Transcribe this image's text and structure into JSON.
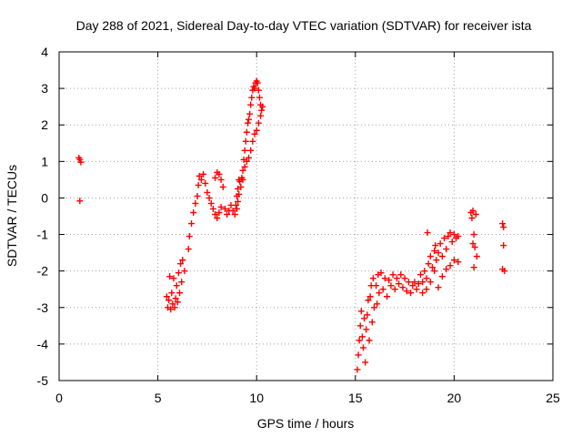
{
  "chart_data": {
    "type": "scatter",
    "title": "Day 288 of 2021, Sidereal Day-to-day VTEC variation (SDTVAR) for receiver ista",
    "xlabel": "GPS time / hours",
    "ylabel": "SDTVAR / TECUs",
    "xlim": [
      0,
      25
    ],
    "ylim": [
      -5,
      4
    ],
    "xticks": [
      0,
      5,
      10,
      15,
      20,
      25
    ],
    "yticks": [
      -5,
      -4,
      -3,
      -2,
      -1,
      0,
      1,
      2,
      3,
      4
    ],
    "grid": true,
    "marker": "+",
    "series": [
      {
        "name": "SDTVAR",
        "color": "#ff0000",
        "points": [
          [
            1.0,
            1.1
          ],
          [
            1.05,
            1.05
          ],
          [
            1.1,
            0.98
          ],
          [
            1.05,
            -0.08
          ],
          [
            5.45,
            -2.7
          ],
          [
            5.5,
            -3.0
          ],
          [
            5.55,
            -2.8
          ],
          [
            5.6,
            -2.15
          ],
          [
            5.65,
            -3.05
          ],
          [
            5.7,
            -2.6
          ],
          [
            5.75,
            -2.9
          ],
          [
            5.8,
            -2.2
          ],
          [
            5.85,
            -3.0
          ],
          [
            5.9,
            -2.75
          ],
          [
            5.95,
            -2.4
          ],
          [
            6.0,
            -2.85
          ],
          [
            6.05,
            -2.05
          ],
          [
            6.1,
            -2.6
          ],
          [
            6.15,
            -1.8
          ],
          [
            6.2,
            -2.3
          ],
          [
            6.25,
            -1.7
          ],
          [
            6.35,
            -2.0
          ],
          [
            6.55,
            -1.4
          ],
          [
            6.6,
            -1.05
          ],
          [
            6.7,
            -0.7
          ],
          [
            6.8,
            -0.4
          ],
          [
            6.9,
            -0.15
          ],
          [
            7.0,
            0.05
          ],
          [
            7.05,
            0.35
          ],
          [
            7.1,
            0.6
          ],
          [
            7.2,
            0.5
          ],
          [
            7.3,
            0.65
          ],
          [
            7.4,
            0.4
          ],
          [
            7.5,
            0.15
          ],
          [
            7.6,
            0.0
          ],
          [
            7.7,
            -0.15
          ],
          [
            7.8,
            -0.3
          ],
          [
            7.9,
            -0.45
          ],
          [
            8.0,
            -0.55
          ],
          [
            8.1,
            -0.4
          ],
          [
            8.2,
            -0.25
          ],
          [
            7.9,
            0.55
          ],
          [
            8.0,
            0.7
          ],
          [
            8.1,
            0.65
          ],
          [
            8.2,
            0.5
          ],
          [
            8.3,
            0.3
          ],
          [
            8.4,
            -0.3
          ],
          [
            8.5,
            -0.45
          ],
          [
            8.6,
            -0.35
          ],
          [
            8.7,
            -0.2
          ],
          [
            8.8,
            -0.35
          ],
          [
            8.9,
            -0.45
          ],
          [
            9.0,
            -0.3
          ],
          [
            9.05,
            -0.1
          ],
          [
            9.1,
            0.1
          ],
          [
            9.2,
            0.3
          ],
          [
            9.25,
            0.55
          ],
          [
            9.3,
            0.75
          ],
          [
            9.35,
            1.05
          ],
          [
            9.4,
            1.3
          ],
          [
            9.45,
            1.55
          ],
          [
            9.5,
            1.8
          ],
          [
            9.55,
            2.05
          ],
          [
            9.6,
            2.15
          ],
          [
            9.65,
            2.3
          ],
          [
            9.7,
            2.55
          ],
          [
            9.75,
            2.75
          ],
          [
            9.8,
            2.95
          ],
          [
            9.85,
            3.05
          ],
          [
            9.9,
            3.0
          ],
          [
            9.95,
            3.15
          ],
          [
            10.0,
            3.2
          ],
          [
            10.05,
            3.15
          ],
          [
            10.1,
            2.95
          ],
          [
            10.15,
            2.75
          ],
          [
            10.2,
            2.55
          ],
          [
            10.25,
            2.4
          ],
          [
            10.3,
            2.5
          ],
          [
            8.95,
            -0.2
          ],
          [
            9.0,
            0.05
          ],
          [
            9.05,
            0.25
          ],
          [
            9.1,
            0.5
          ],
          [
            9.15,
            0.45
          ],
          [
            9.3,
            0.5
          ],
          [
            9.4,
            0.85
          ],
          [
            9.5,
            1.0
          ],
          [
            9.6,
            1.1
          ],
          [
            9.7,
            1.3
          ],
          [
            9.8,
            1.55
          ],
          [
            9.9,
            1.75
          ],
          [
            10.0,
            1.85
          ],
          [
            10.1,
            2.05
          ],
          [
            10.2,
            2.25
          ],
          [
            15.1,
            -4.7
          ],
          [
            15.15,
            -4.3
          ],
          [
            15.2,
            -3.9
          ],
          [
            15.25,
            -3.5
          ],
          [
            15.3,
            -3.1
          ],
          [
            15.35,
            -3.8
          ],
          [
            15.4,
            -4.1
          ],
          [
            15.45,
            -3.3
          ],
          [
            15.5,
            -4.5
          ],
          [
            15.55,
            -3.6
          ],
          [
            15.6,
            -3.2
          ],
          [
            15.65,
            -2.8
          ],
          [
            15.7,
            -3.9
          ],
          [
            15.75,
            -2.7
          ],
          [
            15.8,
            -2.4
          ],
          [
            15.85,
            -3.4
          ],
          [
            15.9,
            -2.2
          ],
          [
            15.95,
            -3.0
          ],
          [
            16.05,
            -2.4
          ],
          [
            16.1,
            -2.9
          ],
          [
            16.15,
            -2.1
          ],
          [
            16.2,
            -2.6
          ],
          [
            16.3,
            -2.05
          ],
          [
            16.4,
            -2.5
          ],
          [
            16.5,
            -2.2
          ],
          [
            16.6,
            -2.7
          ],
          [
            16.7,
            -2.25
          ],
          [
            16.8,
            -2.4
          ],
          [
            16.9,
            -2.1
          ],
          [
            17.0,
            -2.5
          ],
          [
            17.1,
            -2.2
          ],
          [
            17.2,
            -2.35
          ],
          [
            17.3,
            -2.1
          ],
          [
            17.4,
            -2.45
          ],
          [
            17.5,
            -2.2
          ],
          [
            17.6,
            -2.55
          ],
          [
            17.7,
            -2.3
          ],
          [
            17.8,
            -2.6
          ],
          [
            17.9,
            -2.4
          ],
          [
            18.0,
            -2.3
          ],
          [
            18.1,
            -2.5
          ],
          [
            18.2,
            -2.35
          ],
          [
            18.3,
            -2.1
          ],
          [
            18.4,
            -2.3
          ],
          [
            18.5,
            -2.0
          ],
          [
            18.6,
            -2.2
          ],
          [
            18.65,
            -0.95
          ],
          [
            18.7,
            -1.8
          ],
          [
            18.8,
            -1.6
          ],
          [
            18.9,
            -1.9
          ],
          [
            19.0,
            -1.45
          ],
          [
            19.05,
            -1.3
          ],
          [
            19.1,
            -1.7
          ],
          [
            19.2,
            -1.5
          ],
          [
            19.3,
            -1.25
          ],
          [
            19.4,
            -1.6
          ],
          [
            19.5,
            -1.1
          ],
          [
            19.6,
            -1.4
          ],
          [
            19.7,
            -1.05
          ],
          [
            19.8,
            -0.95
          ],
          [
            19.9,
            -1.2
          ],
          [
            20.0,
            -1.0
          ],
          [
            20.1,
            -1.1
          ],
          [
            20.2,
            -1.05
          ],
          [
            18.4,
            -2.6
          ],
          [
            18.6,
            -2.5
          ],
          [
            18.8,
            -2.3
          ],
          [
            19.0,
            -2.0
          ],
          [
            19.2,
            -2.45
          ],
          [
            19.4,
            -2.15
          ],
          [
            19.6,
            -1.95
          ],
          [
            19.8,
            -1.85
          ],
          [
            20.0,
            -1.7
          ],
          [
            20.2,
            -1.75
          ],
          [
            20.85,
            -0.4
          ],
          [
            20.9,
            -0.55
          ],
          [
            20.95,
            -0.35
          ],
          [
            21.0,
            -1.0
          ],
          [
            21.05,
            -1.35
          ],
          [
            21.1,
            -0.45
          ],
          [
            21.15,
            -1.6
          ],
          [
            21.0,
            -1.9
          ],
          [
            20.95,
            -1.25
          ],
          [
            22.45,
            -0.7
          ],
          [
            22.5,
            -0.8
          ],
          [
            22.5,
            -1.3
          ],
          [
            22.45,
            -1.95
          ],
          [
            22.55,
            -2.0
          ]
        ]
      }
    ]
  }
}
